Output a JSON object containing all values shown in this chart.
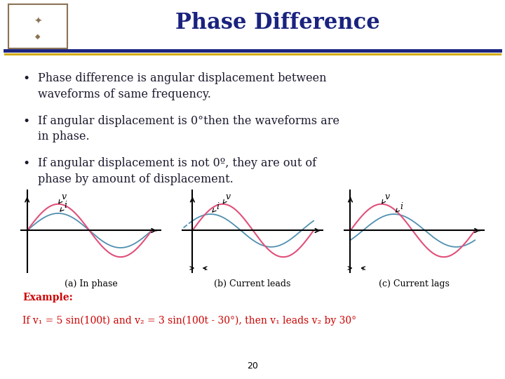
{
  "title": "Phase Difference",
  "title_color": "#1a237e",
  "title_fontsize": 22,
  "title_fontweight": "bold",
  "bg_color": "#ffffff",
  "sep_color1": "#1a237e",
  "sep_color2": "#d4ac0d",
  "bullet_points": [
    "Phase difference is angular displacement between\nwaveforms of same frequency.",
    "If angular displacement is 0°then the waveforms are\nin phase.",
    "If angular displacement is not 0º, they are out of\nphase by amount of displacement."
  ],
  "bullet_fontsize": 11.5,
  "bullet_color": "#1a1a2e",
  "wave_pink": "#e0507a",
  "wave_blue": "#5090b0",
  "subplot_labels": [
    "(a) In phase",
    "(b) Current leads",
    "(c) Current lags"
  ],
  "subplot_label_fontsize": 9,
  "example_bold": "Example:",
  "example_text": "If v₁ = 5 sin(100t) and v₂ = 3 sin(100t - 30°), then v₁ leads v₂ by 30°",
  "example_color": "#cc0000",
  "example_fontsize": 10,
  "page_number": "20",
  "page_number_fontsize": 9
}
